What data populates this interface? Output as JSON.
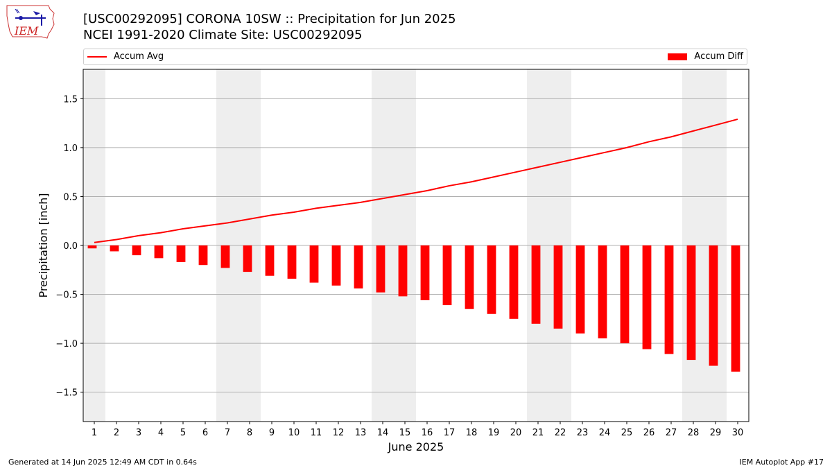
{
  "logo": {
    "text": "IEM"
  },
  "header": {
    "title_line1": "[USC00292095] CORONA 10SW :: Precipitation for Jun 2025",
    "title_line2": "NCEI 1991-2020 Climate Site: USC00292095"
  },
  "legend": {
    "left_label": "Accum Avg",
    "right_label": "Accum Diff"
  },
  "footer": {
    "left": "Generated at 14 Jun 2025 12:49 AM CDT in 0.64s",
    "right": "IEM Autoplot App #17"
  },
  "colors": {
    "series": "#ff0000",
    "weekend_shade": "#eeeeee",
    "grid": "#b0b0b0"
  },
  "chart_data": {
    "type": "bar",
    "xlabel": "June 2025",
    "ylabel": "Precipitation [inch]",
    "ylim": [
      -1.8,
      1.8
    ],
    "yticks": [
      -1.5,
      -1.0,
      -0.5,
      0.0,
      0.5,
      1.0,
      1.5
    ],
    "ytick_labels": [
      "−1.5",
      "−1.0",
      "−0.5",
      "0.0",
      "0.5",
      "1.0",
      "1.5"
    ],
    "categories": [
      "1",
      "2",
      "3",
      "4",
      "5",
      "6",
      "7",
      "8",
      "9",
      "10",
      "11",
      "12",
      "13",
      "14",
      "15",
      "16",
      "17",
      "18",
      "19",
      "20",
      "21",
      "22",
      "23",
      "24",
      "25",
      "26",
      "27",
      "28",
      "29",
      "30"
    ],
    "grid": "horizontal",
    "legend_placement": "top",
    "shaded_days": [
      1,
      7,
      8,
      14,
      15,
      21,
      22,
      28,
      29
    ],
    "series": [
      {
        "name": "Accum Avg",
        "type": "line",
        "values": [
          0.03,
          0.06,
          0.1,
          0.13,
          0.17,
          0.2,
          0.23,
          0.27,
          0.31,
          0.34,
          0.38,
          0.41,
          0.44,
          0.48,
          0.52,
          0.56,
          0.61,
          0.65,
          0.7,
          0.75,
          0.8,
          0.85,
          0.9,
          0.95,
          1.0,
          1.06,
          1.11,
          1.17,
          1.23,
          1.29
        ]
      },
      {
        "name": "Accum Diff",
        "type": "bar",
        "values": [
          -0.03,
          -0.06,
          -0.1,
          -0.13,
          -0.17,
          -0.2,
          -0.23,
          -0.27,
          -0.31,
          -0.34,
          -0.38,
          -0.41,
          -0.44,
          -0.48,
          -0.52,
          -0.56,
          -0.61,
          -0.65,
          -0.7,
          -0.75,
          -0.8,
          -0.85,
          -0.9,
          -0.95,
          -1.0,
          -1.06,
          -1.11,
          -1.17,
          -1.23,
          -1.29
        ]
      }
    ]
  }
}
